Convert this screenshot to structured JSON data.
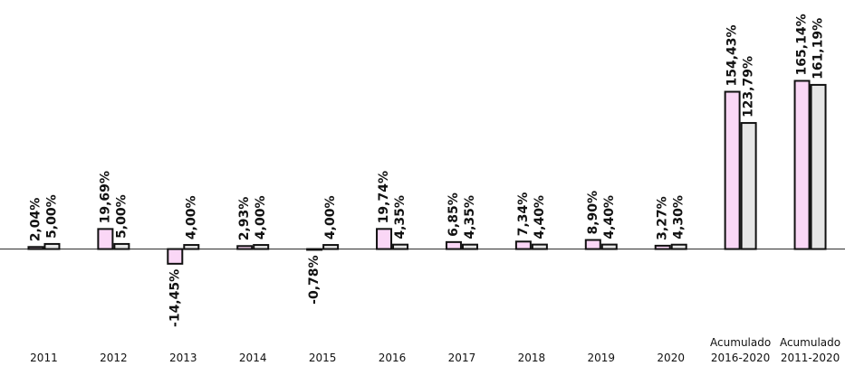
{
  "chart_data": {
    "type": "bar",
    "categories": [
      "2011",
      "2012",
      "2013",
      "2014",
      "2015",
      "2016",
      "2017",
      "2018",
      "2019",
      "2020",
      "Acumulado 2016-2020",
      "Acumulado 2011-2020"
    ],
    "series": [
      {
        "color": "#fad7f6",
        "values": [
          2.04,
          19.69,
          -14.45,
          2.93,
          -0.78,
          19.74,
          6.85,
          7.34,
          8.9,
          3.27,
          154.43,
          165.14
        ],
        "value_labels": [
          "2,04%",
          "19,69%",
          "-14,45%",
          "2,93%",
          "-0,78%",
          "19,74%",
          "6,85%",
          "7,34%",
          "8,90%",
          "3,27%",
          "154,43%",
          "165,14%"
        ]
      },
      {
        "color": "#e6e6e6",
        "values": [
          5.0,
          5.0,
          4.0,
          4.0,
          4.0,
          4.35,
          4.35,
          4.4,
          4.4,
          4.3,
          123.79,
          161.19
        ],
        "value_labels": [
          "5,00%",
          "5,00%",
          "4,00%",
          "4,00%",
          "4,00%",
          "4,35%",
          "4,35%",
          "4,40%",
          "4,40%",
          "4,30%",
          "123,79%",
          "161,19%"
        ]
      }
    ],
    "ylim": [
      -90,
      225
    ]
  }
}
